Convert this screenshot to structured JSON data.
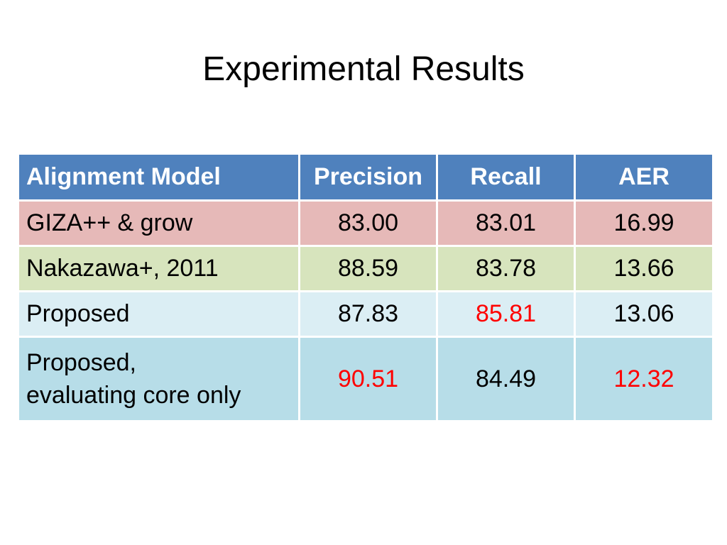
{
  "slide": {
    "title": "Experimental Results"
  },
  "table": {
    "headers": [
      "Alignment Model",
      "Precision",
      "Recall",
      "AER"
    ],
    "header_color": "#4f81bd",
    "highlight_color": "#ff0000",
    "rows": [
      {
        "model": "GIZA++ & grow",
        "precision": "83.00",
        "recall": "83.01",
        "aer": "16.99",
        "row_color": "#e6b9b8"
      },
      {
        "model": "Nakazawa+, 2011",
        "precision": "88.59",
        "recall": "83.78",
        "aer": "13.66",
        "row_color": "#d7e4bd"
      },
      {
        "model": "Proposed",
        "precision": "87.83",
        "recall": "85.81",
        "aer": "13.06",
        "row_color": "#dbeef4",
        "highlighted": [
          "recall"
        ]
      },
      {
        "model": "Proposed,\nevaluating core only",
        "model_line1": "Proposed,",
        "model_line2": "evaluating core only",
        "precision": "90.51",
        "recall": "84.49",
        "aer": "12.32",
        "row_color": "#b7dde8",
        "highlighted": [
          "precision",
          "aer"
        ]
      }
    ]
  }
}
